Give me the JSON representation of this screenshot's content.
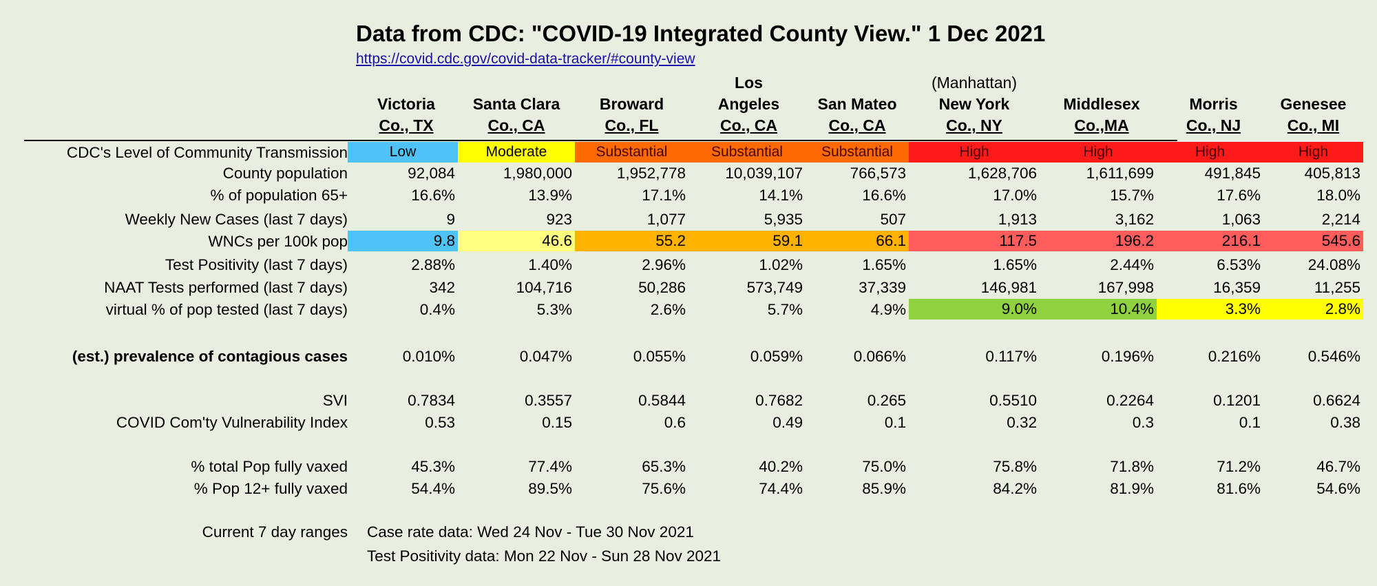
{
  "title": "Data from CDC: \"COVID-19 Integrated County View.\" 1 Dec 2021",
  "source_url": "https://covid.cdc.gov/covid-data-tracker/#county-view",
  "counties": [
    {
      "pre": "",
      "line1": "Victoria",
      "line2": "Co., TX"
    },
    {
      "pre": "",
      "line1": "Santa Clara",
      "line2": "Co., CA"
    },
    {
      "pre": "",
      "line1": "Broward",
      "line2": "Co., FL"
    },
    {
      "pre": "Los",
      "line1": "Angeles",
      "line2": "Co., CA"
    },
    {
      "pre": "",
      "line1": "San Mateo",
      "line2": "Co., CA"
    },
    {
      "pre": "(Manhattan)",
      "line1": "New York",
      "line2": "Co., NY"
    },
    {
      "pre": "",
      "line1": "Middlesex",
      "line2": "Co.,MA"
    },
    {
      "pre": "",
      "line1": "Morris",
      "line2": "Co., NJ"
    },
    {
      "pre": "",
      "line1": "Genesee",
      "line2": "Co., MI"
    }
  ],
  "colors": {
    "low": "#4fc3f7",
    "moderate": "#ffff00",
    "substantial": "#ff6a00",
    "high": "#ff1a1a",
    "wnc_low": "#4fc3f7",
    "wnc_moderate": "#ffff80",
    "wnc_substantial": "#ffb300",
    "wnc_high": "#ff5c5c",
    "test_green": "#8fd13f",
    "test_yellow": "#ffff00"
  },
  "rows": [
    {
      "key": "level",
      "label": "CDC's Level of Community Transmission",
      "bold": false,
      "type": "level",
      "values": [
        "Low",
        "Moderate",
        "Substantial",
        "Substantial",
        "Substantial",
        "High",
        "High",
        "High",
        "High"
      ],
      "colors": [
        "low",
        "moderate",
        "substantial",
        "substantial",
        "substantial",
        "high",
        "high",
        "high",
        "high"
      ]
    },
    {
      "key": "pop",
      "label": "County population",
      "bold": false,
      "values": [
        "92,084",
        "1,980,000",
        "1,952,778",
        "10,039,107",
        "766,573",
        "1,628,706",
        "1,611,699",
        "491,845",
        "405,813"
      ]
    },
    {
      "key": "pct65",
      "label": "% of population 65+",
      "bold": false,
      "values": [
        "16.6%",
        "13.9%",
        "17.1%",
        "14.1%",
        "16.6%",
        "17.0%",
        "15.7%",
        "17.6%",
        "18.0%"
      ]
    },
    {
      "key": "weekly",
      "label": "Weekly New Cases (last 7 days)",
      "bold": false,
      "values": [
        "9",
        "923",
        "1,077",
        "5,935",
        "507",
        "1,913",
        "3,162",
        "1,063",
        "2,214"
      ]
    },
    {
      "key": "wnc",
      "label": "WNCs per 100k pop",
      "bold": false,
      "values": [
        "9.8",
        "46.6",
        "55.2",
        "59.1",
        "66.1",
        "117.5",
        "196.2",
        "216.1",
        "545.6"
      ],
      "colors": [
        "wnc_low",
        "wnc_moderate",
        "wnc_substantial",
        "wnc_substantial",
        "wnc_substantial",
        "wnc_high",
        "wnc_high",
        "wnc_high",
        "wnc_high"
      ]
    },
    {
      "key": "positivity",
      "label": "Test Positivity (last 7 days)",
      "bold": false,
      "values": [
        "2.88%",
        "1.40%",
        "2.96%",
        "1.02%",
        "1.65%",
        "1.65%",
        "2.44%",
        "6.53%",
        "24.08%"
      ]
    },
    {
      "key": "naat",
      "label": "NAAT Tests performed (last 7 days)",
      "bold": false,
      "values": [
        "342",
        "104,716",
        "50,286",
        "573,749",
        "37,339",
        "146,981",
        "167,998",
        "16,359",
        "11,255"
      ]
    },
    {
      "key": "virtual",
      "label": "virtual % of pop tested (last 7 days)",
      "bold": false,
      "values": [
        "0.4%",
        "5.3%",
        "2.6%",
        "5.7%",
        "4.9%",
        "9.0%",
        "10.4%",
        "3.3%",
        "2.8%"
      ],
      "colors": [
        "",
        "",
        "",
        "",
        "",
        "test_green",
        "test_green",
        "test_yellow",
        "test_yellow"
      ]
    },
    {
      "key": "prevalence",
      "label": "(est.) prevalence of contagious cases",
      "bold": true,
      "values": [
        "0.010%",
        "0.047%",
        "0.055%",
        "0.059%",
        "0.066%",
        "0.117%",
        "0.196%",
        "0.216%",
        "0.546%"
      ]
    },
    {
      "key": "svi",
      "label": "SVI",
      "bold": false,
      "values": [
        "0.7834",
        "0.3557",
        "0.5844",
        "0.7682",
        "0.265",
        "0.5510",
        "0.2264",
        "0.1201",
        "0.6624"
      ]
    },
    {
      "key": "ccvi",
      "label": "COVID Com'ty Vulnerability Index",
      "bold": false,
      "values": [
        "0.53",
        "0.15",
        "0.6",
        "0.49",
        "0.1",
        "0.32",
        "0.3",
        "0.1",
        "0.38"
      ]
    },
    {
      "key": "vaxtotal",
      "label": "% total Pop fully vaxed",
      "bold": false,
      "values": [
        "45.3%",
        "77.4%",
        "65.3%",
        "40.2%",
        "75.0%",
        "75.8%",
        "71.8%",
        "71.2%",
        "46.7%"
      ]
    },
    {
      "key": "vax12",
      "label": "% Pop 12+ fully vaxed",
      "bold": false,
      "values": [
        "54.4%",
        "89.5%",
        "75.6%",
        "74.4%",
        "85.9%",
        "84.2%",
        "81.9%",
        "81.6%",
        "54.6%"
      ]
    }
  ],
  "ranges": {
    "label": "Current 7 day ranges",
    "case": "Case rate data: Wed 24 Nov - Tue 30 Nov 2021",
    "test": "Test Positivity data: Mon 22 Nov - Sun 28 Nov 2021"
  }
}
